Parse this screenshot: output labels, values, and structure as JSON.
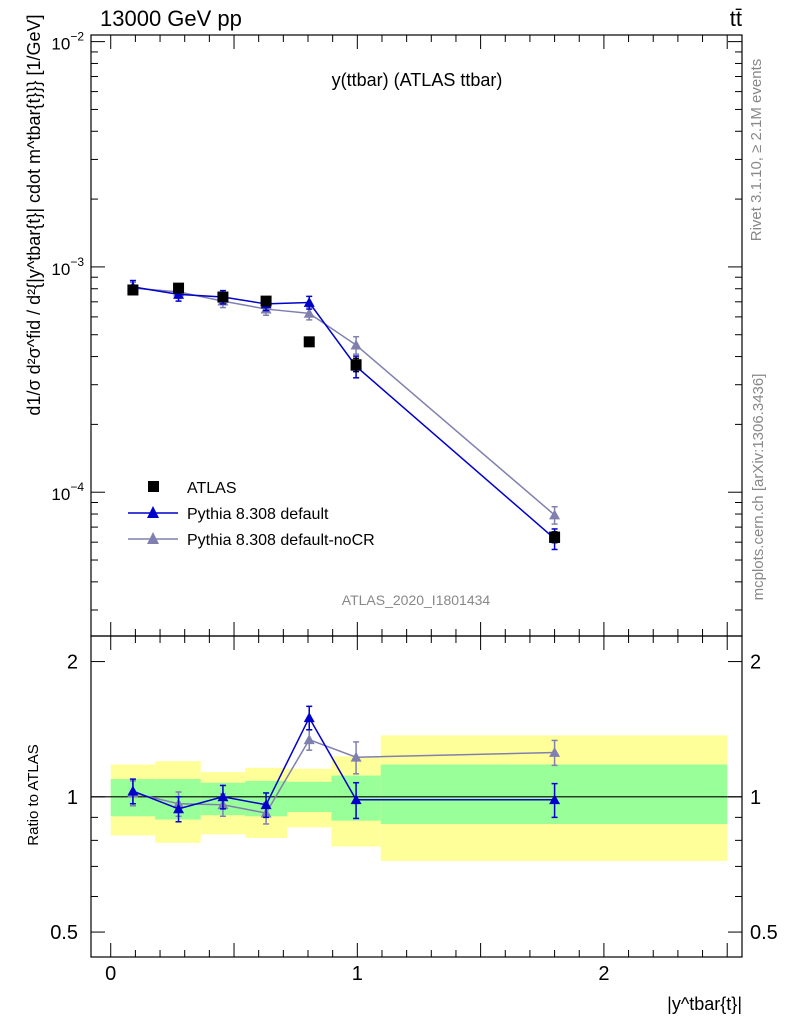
{
  "header": {
    "left": "13000 GeV pp",
    "right": "tt̄"
  },
  "side": {
    "rivet": "Rivet 3.1.10, ≥ 2.1M events",
    "mcplots": "mcplots.cern.ch [arXiv:1306.3436]"
  },
  "chart_data": [
    {
      "type": "scatter",
      "title": "y(ttbar) (ATLAS ttbar)",
      "watermark": "ATLAS_2020_I1801434",
      "ylabel": "d1/σ d²σ^fid / d²{|y^tbar{t}| cdot m^tbar{t}}} [1/GeV]",
      "xlabel": "|y^tbar{t}|",
      "yscale": "log",
      "xlim": [
        -0.08,
        2.56
      ],
      "ylim": [
        2.3e-05,
        0.0107
      ],
      "ytick_labels": [
        {
          "value": 0.01,
          "base": "10",
          "exp": "−2"
        },
        {
          "value": 0.001,
          "base": "10",
          "exp": "−3"
        },
        {
          "value": 0.0001,
          "base": "10",
          "exp": "−4"
        }
      ],
      "legend_position": "bottom-left",
      "series": [
        {
          "name": "ATLAS",
          "marker": "square",
          "color": "#000000",
          "x": [
            0.09,
            0.275,
            0.455,
            0.63,
            0.805,
            0.995,
            1.8
          ],
          "y": [
            0.00079,
            0.000805,
            0.000735,
            0.000705,
            0.000465,
            0.000368,
            6.32e-05
          ],
          "yerr": [
            3e-05,
            3e-05,
            3e-05,
            3e-05,
            2e-05,
            2.5e-05,
            3.5e-06
          ]
        },
        {
          "name": "Pythia 8.308 default",
          "marker": "triangle",
          "color": "#0000cc",
          "x": [
            0.09,
            0.275,
            0.455,
            0.63,
            0.805,
            0.995,
            1.8
          ],
          "y": [
            0.000815,
            0.000755,
            0.000735,
            0.000685,
            0.000695,
            0.000362,
            6.22e-05
          ],
          "yerr": [
            5.5e-05,
            5e-05,
            5e-05,
            4.5e-05,
            4.5e-05,
            4e-05,
            6.5e-06
          ]
        },
        {
          "name": "Pythia 8.308 default-noCR",
          "marker": "triangle",
          "color": "#8080b0",
          "x": [
            0.09,
            0.275,
            0.455,
            0.63,
            0.805,
            0.995,
            1.8
          ],
          "y": [
            0.000805,
            0.000775,
            0.000705,
            0.00065,
            0.000622,
            0.00045,
            7.92e-05
          ],
          "yerr": [
            5e-05,
            5e-05,
            4.5e-05,
            4e-05,
            4e-05,
            4e-05,
            7e-06
          ]
        }
      ]
    },
    {
      "type": "scatter",
      "ylabel": "Ratio to ATLAS",
      "xlabel": "|y^tbar{t}|",
      "yscale": "log",
      "xlim": [
        -0.08,
        2.56
      ],
      "ylim": [
        0.44,
        2.28
      ],
      "ytick_labels": [
        {
          "value": 2,
          "label": "2"
        },
        {
          "value": 1,
          "label": "1"
        },
        {
          "value": 0.5,
          "label": "0.5"
        }
      ],
      "xtick_labels": [
        {
          "value": 0,
          "label": "0"
        },
        {
          "value": 1,
          "label": "1"
        },
        {
          "value": 2,
          "label": "2"
        }
      ],
      "bands": [
        {
          "x0": 0.0,
          "x1": 0.18,
          "inner": [
            0.905,
            1.095
          ],
          "outer": [
            0.82,
            1.18
          ]
        },
        {
          "x0": 0.18,
          "x1": 0.365,
          "inner": [
            0.89,
            1.095
          ],
          "outer": [
            0.79,
            1.2
          ]
        },
        {
          "x0": 0.365,
          "x1": 0.545,
          "inner": [
            0.91,
            1.075
          ],
          "outer": [
            0.825,
            1.135
          ]
        },
        {
          "x0": 0.545,
          "x1": 0.715,
          "inner": [
            0.905,
            1.085
          ],
          "outer": [
            0.81,
            1.16
          ]
        },
        {
          "x0": 0.715,
          "x1": 0.895,
          "inner": [
            0.925,
            1.08
          ],
          "outer": [
            0.855,
            1.155
          ]
        },
        {
          "x0": 0.895,
          "x1": 1.095,
          "inner": [
            0.885,
            1.115
          ],
          "outer": [
            0.775,
            1.23
          ]
        },
        {
          "x0": 1.095,
          "x1": 2.5,
          "inner": [
            0.87,
            1.18
          ],
          "outer": [
            0.72,
            1.37
          ]
        }
      ],
      "band_colors": {
        "inner": "#99ff99",
        "outer": "#ffff99"
      },
      "series": [
        {
          "name": "Pythia 8.308 default",
          "color": "#0000cc",
          "x": [
            0.09,
            0.275,
            0.455,
            0.63,
            0.805,
            0.995,
            1.8
          ],
          "y": [
            1.03,
            0.94,
            1.0,
            0.96,
            1.5,
            0.985,
            0.985
          ],
          "yerr": [
            0.065,
            0.06,
            0.06,
            0.06,
            0.09,
            0.09,
            0.085
          ]
        },
        {
          "name": "Pythia 8.308 default-noCR",
          "color": "#8080b0",
          "x": [
            0.09,
            0.275,
            0.455,
            0.63,
            0.805,
            0.995,
            1.8
          ],
          "y": [
            1.02,
            0.965,
            0.96,
            0.92,
            1.34,
            1.225,
            1.255
          ],
          "yerr": [
            0.065,
            0.06,
            0.055,
            0.05,
            0.07,
            0.1,
            0.08
          ]
        }
      ]
    }
  ]
}
